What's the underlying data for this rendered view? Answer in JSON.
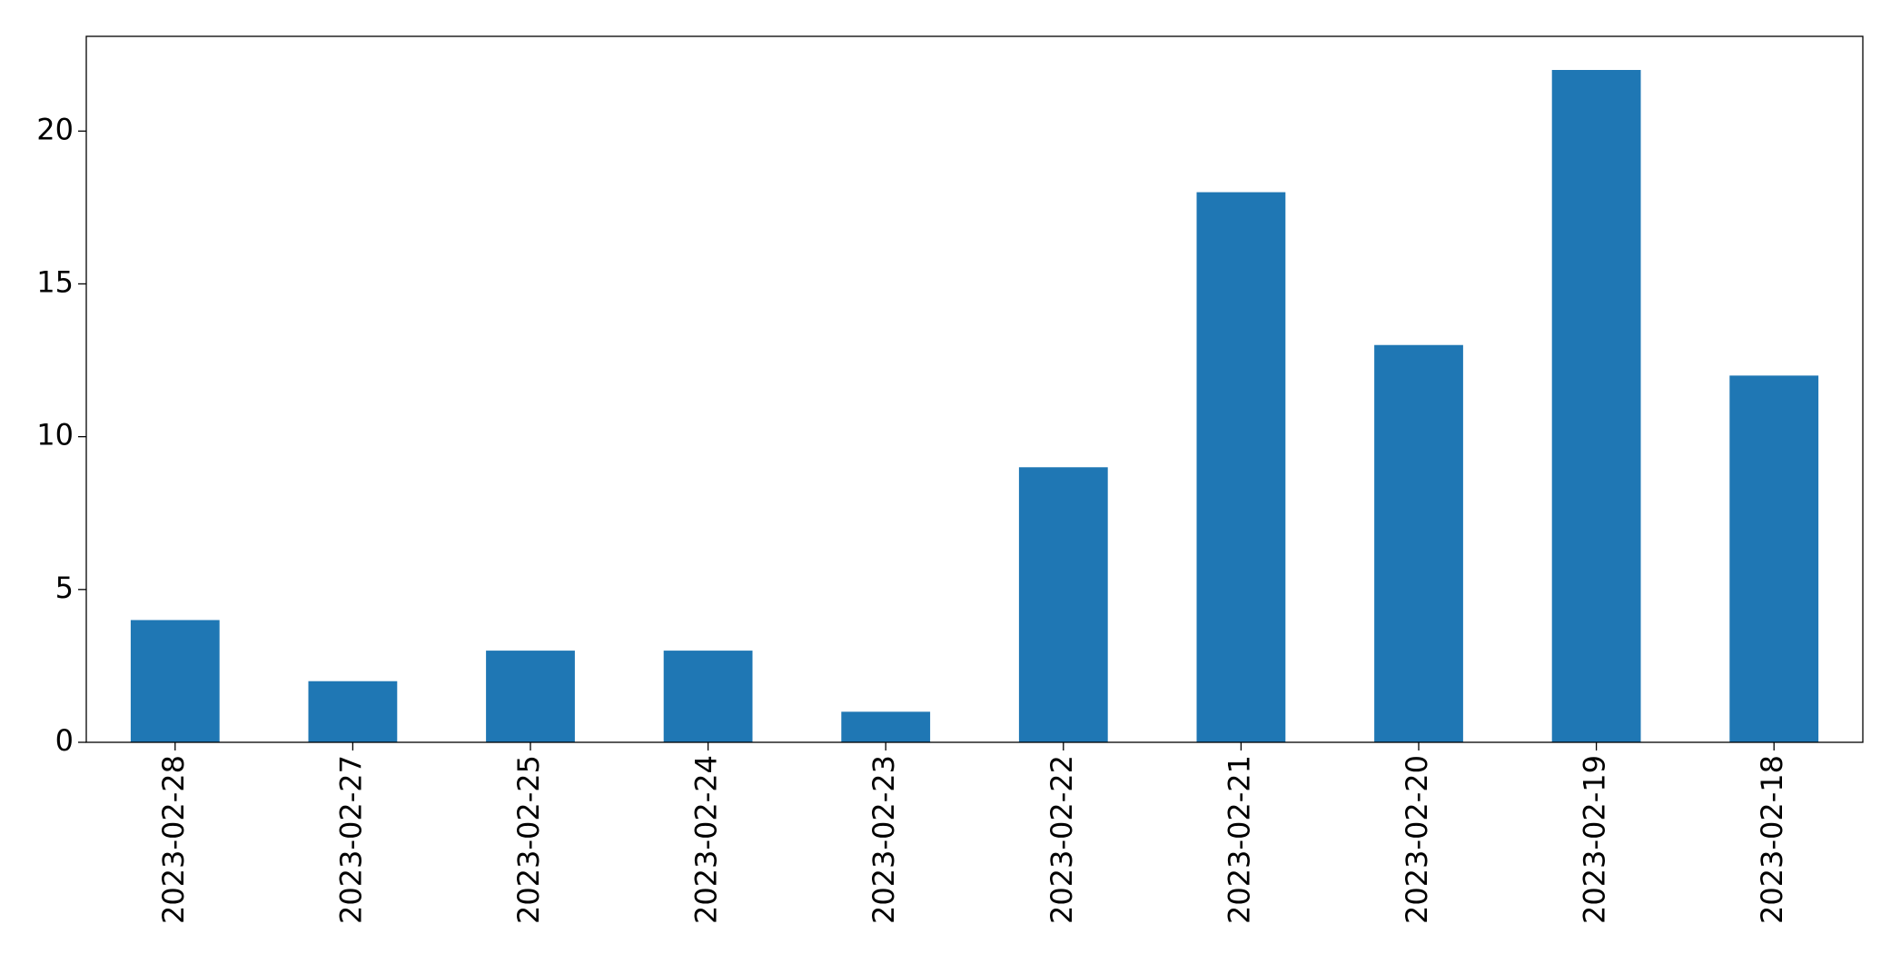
{
  "chart_data": {
    "type": "bar",
    "categories": [
      "2023-02-28",
      "2023-02-27",
      "2023-02-25",
      "2023-02-24",
      "2023-02-23",
      "2023-02-22",
      "2023-02-21",
      "2023-02-20",
      "2023-02-19",
      "2023-02-18"
    ],
    "values": [
      4,
      2,
      3,
      3,
      1,
      9,
      18,
      13,
      22,
      12
    ],
    "color": "#1f77b4",
    "ylim": [
      0,
      23.1
    ],
    "yticks": [
      0,
      5,
      10,
      15,
      20
    ],
    "grid": false
  }
}
